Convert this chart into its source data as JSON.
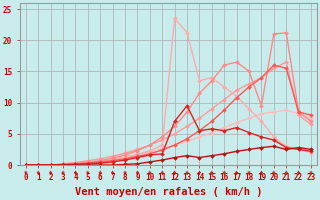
{
  "title": "",
  "xlabel": "Vent moyen/en rafales ( km/h )",
  "ylabel": "",
  "bg_color": "#c8ecec",
  "grid_color": "#aaaaaa",
  "xlim": [
    -0.5,
    23.5
  ],
  "ylim": [
    0,
    26
  ],
  "xticks": [
    0,
    1,
    2,
    3,
    4,
    5,
    6,
    7,
    8,
    9,
    10,
    11,
    12,
    13,
    14,
    15,
    16,
    17,
    18,
    19,
    20,
    21,
    22,
    23
  ],
  "yticks": [
    0,
    5,
    10,
    15,
    20,
    25
  ],
  "lines": [
    {
      "x": [
        0,
        1,
        2,
        3,
        4,
        5,
        6,
        7,
        8,
        9,
        10,
        11,
        12,
        13,
        14,
        15,
        16,
        17,
        18,
        19,
        20,
        21,
        22,
        23
      ],
      "y": [
        0,
        0,
        0,
        0.1,
        0.3,
        0.5,
        0.7,
        1.0,
        1.3,
        1.7,
        2.1,
        2.6,
        3.2,
        3.8,
        4.5,
        5.2,
        6.0,
        6.8,
        7.5,
        8.2,
        8.5,
        8.8,
        8.2,
        7.5
      ],
      "color": "#ffbbbb",
      "lw": 1.0,
      "marker": "D",
      "ms": 2
    },
    {
      "x": [
        0,
        1,
        2,
        3,
        4,
        5,
        6,
        7,
        8,
        9,
        10,
        11,
        12,
        13,
        14,
        15,
        16,
        17,
        18,
        19,
        20,
        21,
        22,
        23
      ],
      "y": [
        0,
        0,
        0,
        0.2,
        0.4,
        0.7,
        1.0,
        1.4,
        1.9,
        2.5,
        3.2,
        4.0,
        5.0,
        6.2,
        7.5,
        9.0,
        10.5,
        12.0,
        13.0,
        14.0,
        15.5,
        16.5,
        8.0,
        6.5
      ],
      "color": "#ff9999",
      "lw": 1.0,
      "marker": "D",
      "ms": 2
    },
    {
      "x": [
        0,
        1,
        2,
        3,
        4,
        5,
        6,
        7,
        8,
        9,
        10,
        11,
        12,
        13,
        14,
        15,
        16,
        17,
        18,
        19,
        20,
        21,
        22,
        23
      ],
      "y": [
        0,
        0,
        0,
        0.1,
        0.2,
        0.3,
        0.5,
        0.8,
        1.2,
        1.7,
        2.3,
        3.2,
        23.5,
        21.2,
        13.5,
        14.0,
        12.5,
        11.0,
        9.0,
        7.0,
        4.5,
        3.0,
        2.5,
        2.0
      ],
      "color": "#ffaaaa",
      "lw": 1.0,
      "marker": "D",
      "ms": 2
    },
    {
      "x": [
        0,
        1,
        2,
        3,
        4,
        5,
        6,
        7,
        8,
        9,
        10,
        11,
        12,
        13,
        14,
        15,
        16,
        17,
        18,
        19,
        20,
        21,
        22,
        23
      ],
      "y": [
        0,
        0,
        0,
        0.1,
        0.2,
        0.4,
        0.7,
        1.1,
        1.6,
        2.3,
        3.2,
        4.5,
        6.2,
        8.5,
        11.5,
        13.5,
        16.0,
        16.5,
        15.0,
        9.5,
        21.0,
        21.2,
        8.5,
        7.0
      ],
      "color": "#ff8888",
      "lw": 1.0,
      "marker": "D",
      "ms": 2
    },
    {
      "x": [
        0,
        1,
        2,
        3,
        4,
        5,
        6,
        7,
        8,
        9,
        10,
        11,
        12,
        13,
        14,
        15,
        16,
        17,
        18,
        19,
        20,
        21,
        22,
        23
      ],
      "y": [
        0,
        0,
        0,
        0.1,
        0.2,
        0.3,
        0.5,
        0.7,
        1.0,
        1.4,
        1.8,
        2.4,
        3.2,
        4.2,
        5.5,
        7.0,
        8.8,
        10.8,
        12.5,
        14.0,
        16.0,
        15.5,
        8.5,
        8.0
      ],
      "color": "#ff5555",
      "lw": 1.0,
      "marker": "D",
      "ms": 2
    },
    {
      "x": [
        0,
        1,
        2,
        3,
        4,
        5,
        6,
        7,
        8,
        9,
        10,
        11,
        12,
        13,
        14,
        15,
        16,
        17,
        18,
        19,
        20,
        21,
        22,
        23
      ],
      "y": [
        0,
        0,
        0,
        0.05,
        0.1,
        0.2,
        0.3,
        0.5,
        0.8,
        1.2,
        1.6,
        1.8,
        7.0,
        9.5,
        5.5,
        5.8,
        5.5,
        6.0,
        5.2,
        4.5,
        4.0,
        2.8,
        2.5,
        2.2
      ],
      "color": "#dd2222",
      "lw": 1.0,
      "marker": "D",
      "ms": 2
    },
    {
      "x": [
        0,
        1,
        2,
        3,
        4,
        5,
        6,
        7,
        8,
        9,
        10,
        11,
        12,
        13,
        14,
        15,
        16,
        17,
        18,
        19,
        20,
        21,
        22,
        23
      ],
      "y": [
        0,
        0,
        0,
        0,
        0,
        0,
        0,
        0,
        0.1,
        0.2,
        0.5,
        0.8,
        1.2,
        1.5,
        1.2,
        1.5,
        1.8,
        2.2,
        2.5,
        2.8,
        3.0,
        2.5,
        2.8,
        2.5
      ],
      "color": "#bb1111",
      "lw": 1.0,
      "marker": "D",
      "ms": 2
    }
  ],
  "tick_color": "#cc0000",
  "tick_fontsize": 5.5,
  "xlabel_fontsize": 7.5
}
